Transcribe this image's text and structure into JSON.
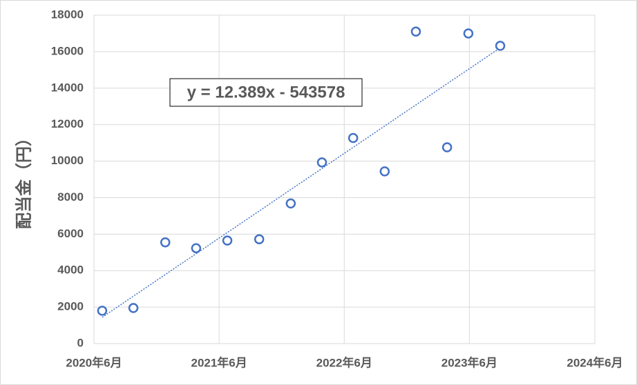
{
  "chart_data": {
    "type": "scatter",
    "y_label": "配当金（円）",
    "annotation": "y = 12.389x - 543578",
    "trendline": true,
    "series": [
      {
        "color": "#4472c4",
        "x": [
          44007,
          44098,
          44191,
          44281,
          44372,
          44465,
          44557,
          44648,
          44739,
          44831,
          44922,
          45013,
          45075,
          45168
        ],
        "values": [
          1800,
          1950,
          5550,
          5230,
          5650,
          5720,
          7680,
          9930,
          11270,
          9440,
          17100,
          10760,
          17000,
          16320
        ]
      }
    ],
    "xlim": [
      43983,
      45444
    ],
    "xticks": [
      {
        "value": 43983,
        "label": "2020年6月"
      },
      {
        "value": 44348,
        "label": "2021年6月"
      },
      {
        "value": 44713,
        "label": "2022年6月"
      },
      {
        "value": 45078,
        "label": "2023年6月"
      },
      {
        "value": 45444,
        "label": "2024年6月"
      }
    ],
    "ylim": [
      0,
      18000
    ],
    "yticks": [
      0,
      2000,
      4000,
      6000,
      8000,
      10000,
      12000,
      14000,
      16000,
      18000
    ],
    "grid": true
  }
}
